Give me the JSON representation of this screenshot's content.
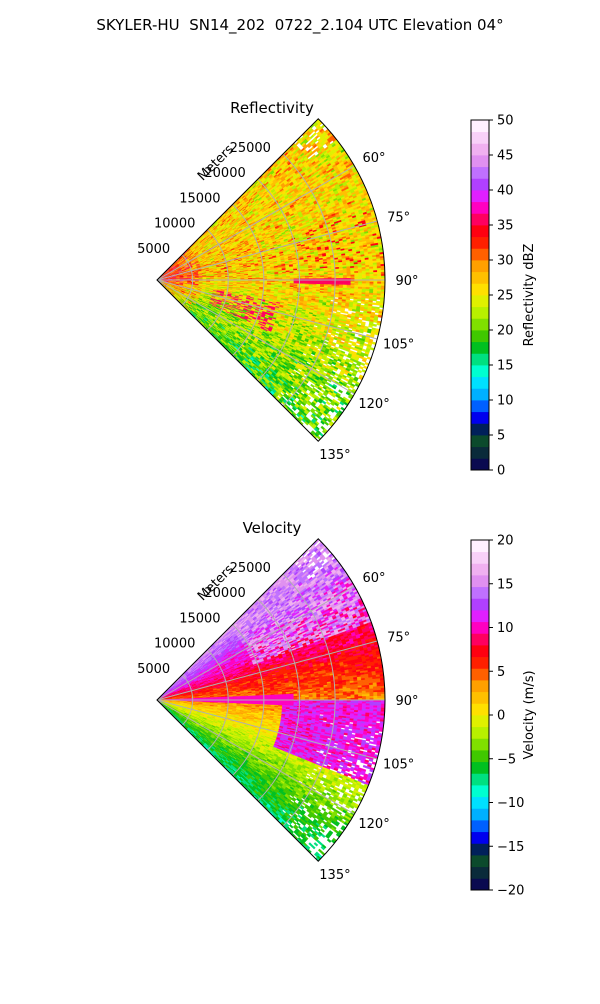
{
  "figure": {
    "title": "SKYLER-HU  SN14_202  0722_2.104 UTC Elevation 04°"
  },
  "chart_data": [
    {
      "type": "heatmap",
      "subtype": "polar-sector-ppi",
      "title": "Reflectivity",
      "radial_label": "Meters",
      "radial_ticks": [
        5000,
        10000,
        15000,
        20000,
        25000
      ],
      "radial_tick_labels": [
        "5000",
        "10000",
        "15000",
        "20000",
        "25000"
      ],
      "radial_range": [
        0,
        32000
      ],
      "angle_range_deg": [
        45,
        135
      ],
      "angle_ticks": [
        60,
        75,
        90,
        105,
        120,
        135
      ],
      "angle_tick_labels": [
        "60°",
        "75°",
        "90°",
        "105°",
        "120°",
        "135°"
      ],
      "grid": true,
      "colorbar": {
        "label": "Reflectivity dBZ",
        "range": [
          0,
          50
        ],
        "ticks": [
          0,
          5,
          10,
          15,
          20,
          25,
          30,
          35,
          40,
          45,
          50
        ],
        "tick_labels": [
          "0",
          "5",
          "10",
          "15",
          "20",
          "25",
          "30",
          "35",
          "40",
          "45",
          "50"
        ],
        "colors": [
          "#0a0a50",
          "#0a2a3a",
          "#0b4a2c",
          "#00205a",
          "#0000ee",
          "#0060ff",
          "#00b0ff",
          "#00e0ff",
          "#00ffd0",
          "#00e080",
          "#00c020",
          "#40c800",
          "#80e000",
          "#b8f000",
          "#e0f000",
          "#ffe000",
          "#ffc000",
          "#ffa000",
          "#ff6000",
          "#ff2000",
          "#ff0010",
          "#ff0060",
          "#ff00c0",
          "#e020ff",
          "#b040ff",
          "#c070ff",
          "#e090f0",
          "#f0b0f0",
          "#f8d0f8",
          "#fff0ff"
        ]
      }
    },
    {
      "type": "heatmap",
      "subtype": "polar-sector-ppi",
      "title": "Velocity",
      "radial_label": "Meters",
      "radial_ticks": [
        5000,
        10000,
        15000,
        20000,
        25000
      ],
      "radial_tick_labels": [
        "5000",
        "10000",
        "15000",
        "20000",
        "25000"
      ],
      "radial_range": [
        0,
        32000
      ],
      "angle_range_deg": [
        45,
        135
      ],
      "angle_ticks": [
        60,
        75,
        90,
        105,
        120,
        135
      ],
      "angle_tick_labels": [
        "60°",
        "75°",
        "90°",
        "105°",
        "120°",
        "135°"
      ],
      "grid": true,
      "colorbar": {
        "label": "Velocity (m/s)",
        "range": [
          -20,
          20
        ],
        "ticks": [
          -20,
          -15,
          -10,
          -5,
          0,
          5,
          10,
          15,
          20
        ],
        "tick_labels": [
          "−20",
          "−15",
          "−10",
          "−5",
          "0",
          "5",
          "10",
          "15",
          "20"
        ],
        "colors": [
          "#0a0a50",
          "#0a2a3a",
          "#0b4a2c",
          "#00205a",
          "#0000ee",
          "#0060ff",
          "#00b0ff",
          "#00e0ff",
          "#00ffd0",
          "#00e080",
          "#00c020",
          "#40c800",
          "#80e000",
          "#b8f000",
          "#e0f000",
          "#ffe000",
          "#ffc000",
          "#ffa000",
          "#ff6000",
          "#ff2000",
          "#ff0010",
          "#ff0060",
          "#ff00c0",
          "#e020ff",
          "#b040ff",
          "#c070ff",
          "#e090f0",
          "#f0b0f0",
          "#f8d0f8",
          "#fff0ff"
        ]
      }
    }
  ]
}
